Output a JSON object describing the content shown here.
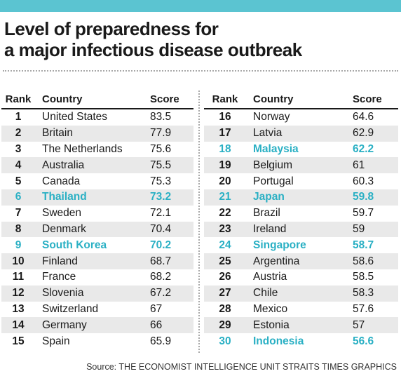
{
  "title": {
    "line1": "Level of preparedness for",
    "line2": "a major infectious disease outbreak"
  },
  "colors": {
    "accent": "#5bc4d1",
    "highlight_text": "#2ab0c4",
    "stripe": "#e9e9e9"
  },
  "chart_data": {
    "type": "table",
    "columns": [
      "Rank",
      "Country",
      "Score"
    ],
    "rows": [
      {
        "rank": "1",
        "country": "United States",
        "score": "83.5",
        "highlight": false
      },
      {
        "rank": "2",
        "country": "Britain",
        "score": "77.9",
        "highlight": false
      },
      {
        "rank": "3",
        "country": "The Netherlands",
        "score": "75.6",
        "highlight": false
      },
      {
        "rank": "4",
        "country": "Australia",
        "score": "75.5",
        "highlight": false
      },
      {
        "rank": "5",
        "country": "Canada",
        "score": "75.3",
        "highlight": false
      },
      {
        "rank": "6",
        "country": "Thailand",
        "score": "73.2",
        "highlight": true
      },
      {
        "rank": "7",
        "country": "Sweden",
        "score": "72.1",
        "highlight": false
      },
      {
        "rank": "8",
        "country": "Denmark",
        "score": "70.4",
        "highlight": false
      },
      {
        "rank": "9",
        "country": "South Korea",
        "score": "70.2",
        "highlight": true
      },
      {
        "rank": "10",
        "country": "Finland",
        "score": "68.7",
        "highlight": false
      },
      {
        "rank": "11",
        "country": "France",
        "score": "68.2",
        "highlight": false
      },
      {
        "rank": "12",
        "country": "Slovenia",
        "score": "67.2",
        "highlight": false
      },
      {
        "rank": "13",
        "country": "Switzerland",
        "score": "67",
        "highlight": false
      },
      {
        "rank": "14",
        "country": "Germany",
        "score": "66",
        "highlight": false
      },
      {
        "rank": "15",
        "country": "Spain",
        "score": "65.9",
        "highlight": false
      },
      {
        "rank": "16",
        "country": "Norway",
        "score": "64.6",
        "highlight": false
      },
      {
        "rank": "17",
        "country": "Latvia",
        "score": "62.9",
        "highlight": false
      },
      {
        "rank": "18",
        "country": "Malaysia",
        "score": "62.2",
        "highlight": true
      },
      {
        "rank": "19",
        "country": "Belgium",
        "score": "61",
        "highlight": false
      },
      {
        "rank": "20",
        "country": "Portugal",
        "score": "60.3",
        "highlight": false
      },
      {
        "rank": "21",
        "country": "Japan",
        "score": "59.8",
        "highlight": true
      },
      {
        "rank": "22",
        "country": "Brazil",
        "score": "59.7",
        "highlight": false
      },
      {
        "rank": "23",
        "country": "Ireland",
        "score": "59",
        "highlight": false
      },
      {
        "rank": "24",
        "country": "Singapore",
        "score": "58.7",
        "highlight": true
      },
      {
        "rank": "25",
        "country": "Argentina",
        "score": "58.6",
        "highlight": false
      },
      {
        "rank": "26",
        "country": "Austria",
        "score": "58.5",
        "highlight": false
      },
      {
        "rank": "27",
        "country": "Chile",
        "score": "58.3",
        "highlight": false
      },
      {
        "rank": "28",
        "country": "Mexico",
        "score": "57.6",
        "highlight": false
      },
      {
        "rank": "29",
        "country": "Estonia",
        "score": "57",
        "highlight": false
      },
      {
        "rank": "30",
        "country": "Indonesia",
        "score": "56.6",
        "highlight": true
      }
    ]
  },
  "source": "Source: THE ECONOMIST INTELLIGENCE UNIT  STRAITS TIMES GRAPHICS"
}
